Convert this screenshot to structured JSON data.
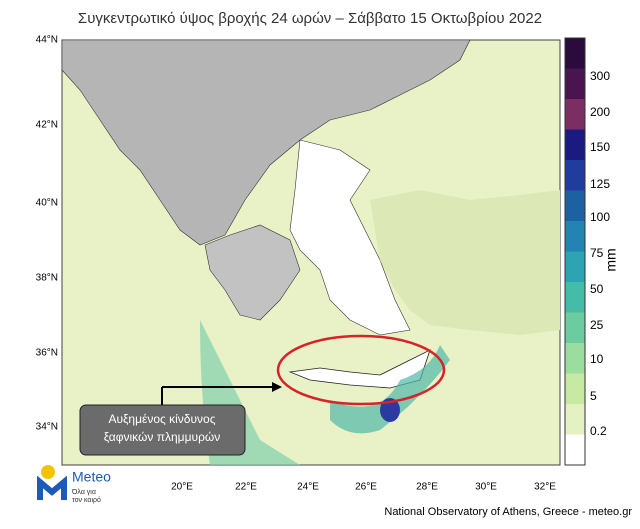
{
  "header": {
    "title": "Συγκεντρωτικό ύψος βροχής 24 ωρών – Σάββατο 15 Οκτωβρίου 2022"
  },
  "map": {
    "lat_labels": [
      "44°N",
      "42°N",
      "40°N",
      "38°N",
      "36°N",
      "34°N"
    ],
    "lon_labels": [
      "20°E",
      "22°E",
      "24°E",
      "26°E",
      "28°E",
      "30°E",
      "32°E"
    ],
    "callout": {
      "line1": "Αυξημένος κίνδυνος",
      "line2": "ξαφνικών πλημμυρών"
    }
  },
  "colorbar": {
    "unit": "mm",
    "labels": [
      "300",
      "200",
      "150",
      "125",
      "100",
      "75",
      "50",
      "25",
      "10",
      "5",
      "0.2"
    ]
  },
  "logo": {
    "name": "Meteo",
    "tagline1": "Όλα για",
    "tagline2": "τον καιρό"
  },
  "footer": {
    "credit": "National Observatory of Athens, Greece - meteo.gr"
  }
}
